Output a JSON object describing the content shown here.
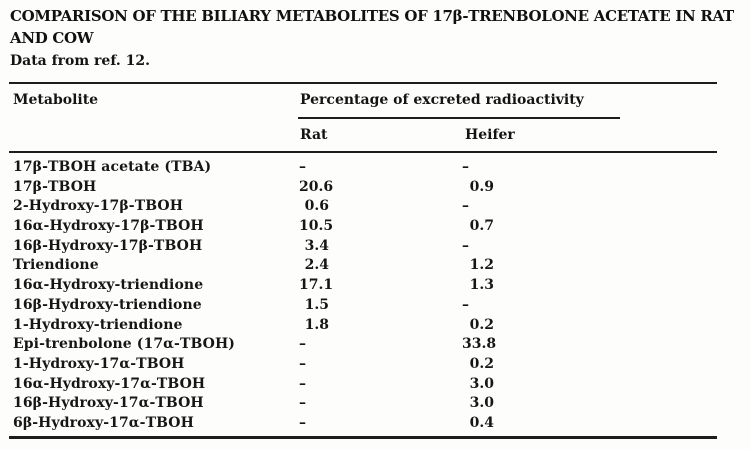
{
  "title_lines": [
    "COMPARISON OF THE BILIARY METABOLITES OF 17β-TRENBOLONE ACETATE IN RAT",
    "AND COW"
  ],
  "source_note": "Data from ref. 12.",
  "table": {
    "col_metabolite": "Metabolite",
    "spanner": "Percentage of excreted radioactivity",
    "subcols": [
      "Rat",
      "Heifer"
    ],
    "no_value_symbol": "–",
    "rows": [
      {
        "metabolite": "17β-TBOH acetate (TBA)",
        "rat": "–",
        "heifer": "–"
      },
      {
        "metabolite": "17β-TBOH",
        "rat": "20.6",
        "heifer": "0.9"
      },
      {
        "metabolite": "2-Hydroxy-17β-TBOH",
        "rat": "0.6",
        "heifer": "–"
      },
      {
        "metabolite": "16α-Hydroxy-17β-TBOH",
        "rat": "10.5",
        "heifer": "0.7"
      },
      {
        "metabolite": "16β-Hydroxy-17β-TBOH",
        "rat": "3.4",
        "heifer": "–"
      },
      {
        "metabolite": "Triendione",
        "rat": "2.4",
        "heifer": "1.2"
      },
      {
        "metabolite": "16α-Hydroxy-triendione",
        "rat": "17.1",
        "heifer": "1.3"
      },
      {
        "metabolite": "16β-Hydroxy-triendione",
        "rat": "1.5",
        "heifer": "–"
      },
      {
        "metabolite": "1-Hydroxy-triendione",
        "rat": "1.8",
        "heifer": "0.2"
      },
      {
        "metabolite": "Epi-trenbolone (17α-TBOH)",
        "rat": "–",
        "heifer": "33.8"
      },
      {
        "metabolite": "1-Hydroxy-17α-TBOH",
        "rat": "–",
        "heifer": "0.2"
      },
      {
        "metabolite": "16α-Hydroxy-17α-TBOH",
        "rat": "–",
        "heifer": "3.0"
      },
      {
        "metabolite": "16β-Hydroxy-17α-TBOH",
        "rat": "–",
        "heifer": "3.0"
      },
      {
        "metabolite": "6β-Hydroxy-17α-TBOH",
        "rat": "–",
        "heifer": "0.4"
      }
    ]
  }
}
